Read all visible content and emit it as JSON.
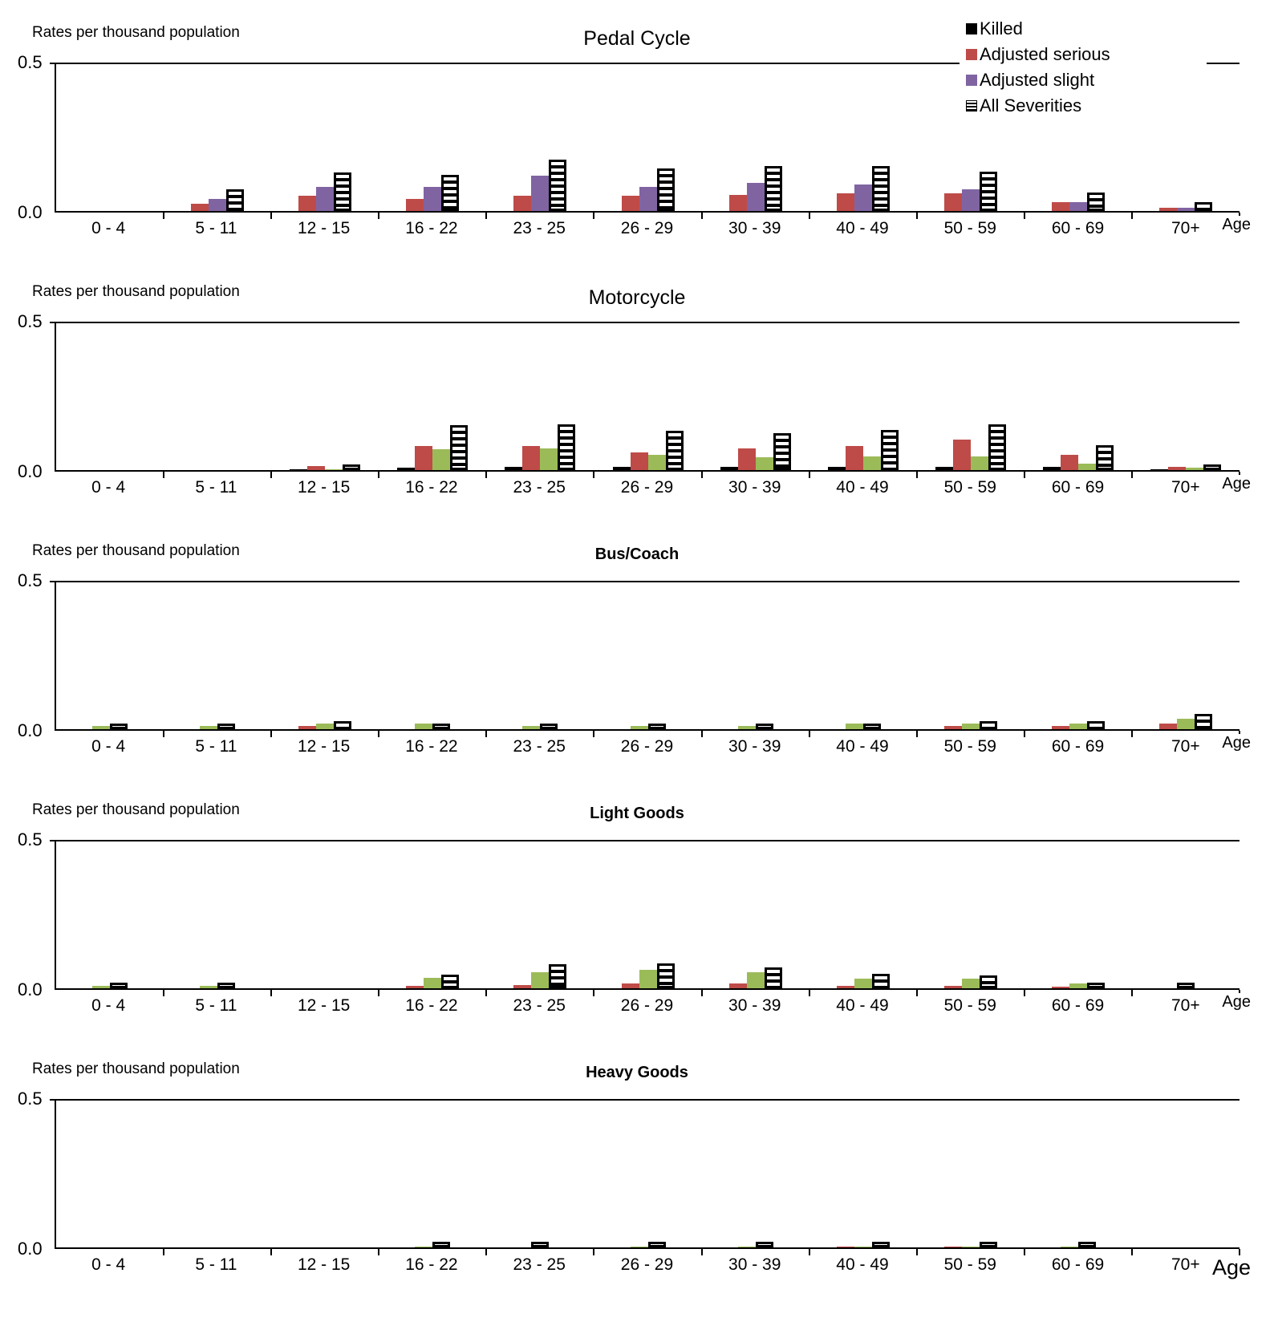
{
  "axis": {
    "ylabel": "Rates per thousand population",
    "y_top_label": "0.5",
    "y_bottom_label": "0.0",
    "x_axis_label": "Age",
    "ylim": [
      0,
      0.5
    ]
  },
  "legend": {
    "items": [
      {
        "label": "Killed",
        "color": "#000000",
        "style": "solid"
      },
      {
        "label": "Adjusted serious",
        "color": "#BE4B48",
        "style": "solid"
      },
      {
        "label": "Adjusted slight",
        "color": "#8064A2",
        "style": "solid"
      },
      {
        "label": "All Severities",
        "color": "#000000",
        "style": "striped"
      }
    ]
  },
  "colors": {
    "killed": "#000000",
    "serious": "#BE4B48",
    "slight_purple": "#8064A2",
    "slight_green": "#9BBB59",
    "all_severities_pattern": "black-white-horizontal-stripes"
  },
  "chart_data": [
    {
      "type": "bar",
      "title": "Pedal Cycle",
      "ylabel": "Rates per thousand population",
      "ylim": [
        0,
        0.5
      ],
      "grid": false,
      "legend_position": "top-right",
      "categories": [
        "0 - 4",
        "5 - 11",
        "12 - 15",
        "16 - 22",
        "23 - 25",
        "26 - 29",
        "30 - 39",
        "40 - 49",
        "50 - 59",
        "60 - 69",
        "70+"
      ],
      "slight_color": "#8064A2",
      "series": [
        {
          "name": "Killed",
          "values": [
            0,
            0,
            0,
            0,
            0,
            0,
            0,
            0,
            0,
            0,
            0
          ]
        },
        {
          "name": "Adjusted serious",
          "values": [
            0,
            0.023,
            0.05,
            0.04,
            0.05,
            0.052,
            0.053,
            0.06,
            0.06,
            0.03,
            0.012
          ]
        },
        {
          "name": "Adjusted slight",
          "values": [
            0,
            0.04,
            0.08,
            0.082,
            0.12,
            0.082,
            0.094,
            0.09,
            0.072,
            0.03,
            0.012
          ]
        },
        {
          "name": "All Severities",
          "values": [
            0,
            0.072,
            0.13,
            0.122,
            0.172,
            0.142,
            0.152,
            0.15,
            0.132,
            0.062,
            0.03
          ]
        }
      ]
    },
    {
      "type": "bar",
      "title": "Motorcycle",
      "ylabel": "Rates per thousand population",
      "ylim": [
        0,
        0.5
      ],
      "grid": false,
      "categories": [
        "0  - 4",
        "5  - 11",
        "12 - 15",
        "16 - 22",
        "23 - 25",
        "26 - 29",
        "30 - 39",
        "40 - 49",
        "50 - 59",
        "60 - 69",
        "70+"
      ],
      "slight_color": "#9BBB59",
      "series": [
        {
          "name": "Killed",
          "values": [
            0,
            0,
            0.003,
            0.008,
            0.012,
            0.012,
            0.012,
            0.012,
            0.012,
            0.012,
            0.004
          ]
        },
        {
          "name": "Adjusted serious",
          "values": [
            0,
            0,
            0.013,
            0.08,
            0.082,
            0.06,
            0.072,
            0.082,
            0.102,
            0.052,
            0.01
          ]
        },
        {
          "name": "Adjusted slight",
          "values": [
            0,
            0,
            0.003,
            0.07,
            0.072,
            0.05,
            0.043,
            0.045,
            0.045,
            0.022,
            0.008
          ]
        },
        {
          "name": "All Severities",
          "values": [
            0,
            0,
            0.02,
            0.152,
            0.153,
            0.133,
            0.124,
            0.135,
            0.153,
            0.085,
            0.02
          ]
        }
      ]
    },
    {
      "type": "bar",
      "title": "Bus/Coach",
      "ylabel": "Rates per thousand population",
      "ylim": [
        0,
        0.5
      ],
      "grid": false,
      "categories": [
        "0 - 4",
        "5 - 11",
        "12 - 15",
        "16 - 22",
        "23 - 25",
        "26 - 29",
        "30 - 39",
        "40 - 49",
        "50 - 59",
        "60 - 69",
        "70+"
      ],
      "slight_color": "#9BBB59",
      "series": [
        {
          "name": "Killed",
          "values": [
            0,
            0,
            0,
            0,
            0,
            0,
            0,
            0,
            0,
            0,
            0
          ]
        },
        {
          "name": "Adjusted serious",
          "values": [
            0,
            0,
            0.01,
            0,
            0,
            0,
            0,
            0,
            0.01,
            0.01,
            0.02
          ]
        },
        {
          "name": "Adjusted slight",
          "values": [
            0.012,
            0.01,
            0.018,
            0.02,
            0.012,
            0.012,
            0.012,
            0.02,
            0.02,
            0.02,
            0.035
          ]
        },
        {
          "name": "All Severities",
          "values": [
            0.018,
            0.012,
            0.028,
            0.018,
            0.012,
            0.012,
            0.018,
            0.016,
            0.028,
            0.028,
            0.05
          ]
        }
      ]
    },
    {
      "type": "bar",
      "title": "Light Goods",
      "ylabel": "Rates per thousand population",
      "ylim": [
        0,
        0.5
      ],
      "grid": false,
      "categories": [
        "0 - 4",
        "5 - 11",
        "12 - 15",
        "16 - 22",
        "23 - 25",
        "26 - 29",
        "30 - 39",
        "40 - 49",
        "50 - 59",
        "60 - 69",
        "70+"
      ],
      "slight_color": "#9BBB59",
      "series": [
        {
          "name": "Killed",
          "values": [
            0,
            0,
            0,
            0,
            0,
            0,
            0,
            0,
            0,
            0,
            0
          ]
        },
        {
          "name": "Adjusted serious",
          "values": [
            0,
            0,
            0,
            0.008,
            0.01,
            0.016,
            0.016,
            0.008,
            0.008,
            0.006,
            0
          ]
        },
        {
          "name": "Adjusted slight",
          "values": [
            0.008,
            0.007,
            0,
            0.035,
            0.055,
            0.062,
            0.055,
            0.032,
            0.032,
            0.017,
            0
          ]
        },
        {
          "name": "All Severities",
          "values": [
            0.01,
            0.01,
            0,
            0.045,
            0.08,
            0.085,
            0.07,
            0.048,
            0.044,
            0.019,
            0.008
          ]
        }
      ]
    },
    {
      "type": "bar",
      "title": "Heavy Goods",
      "ylabel": "Rates per thousand population",
      "ylim": [
        0,
        0.5
      ],
      "grid": false,
      "categories": [
        "0  - 4",
        "5  - 11",
        "12 - 15",
        "16 - 22",
        "23 - 25",
        "26 - 29",
        "30 - 39",
        "40 - 49",
        "50 - 59",
        "60 - 69",
        "70+"
      ],
      "slight_color": "#9BBB59",
      "series": [
        {
          "name": "Killed",
          "values": [
            0,
            0,
            0,
            0,
            0,
            0,
            0,
            0,
            0,
            0,
            0
          ]
        },
        {
          "name": "Adjusted serious",
          "values": [
            0,
            0,
            0,
            0,
            0,
            0,
            0,
            0.004,
            0.004,
            0,
            0
          ]
        },
        {
          "name": "Adjusted slight",
          "values": [
            0,
            0,
            0,
            0.002,
            0,
            0.003,
            0.003,
            0.003,
            0.003,
            0.003,
            0
          ]
        },
        {
          "name": "All Severities",
          "values": [
            0,
            0,
            0,
            0.006,
            0.006,
            0.007,
            0.007,
            0.013,
            0.013,
            0.007,
            0
          ]
        }
      ]
    }
  ]
}
